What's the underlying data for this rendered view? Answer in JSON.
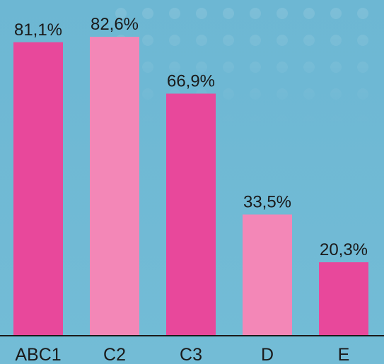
{
  "chart_data": {
    "type": "bar",
    "categories": [
      "ABC1",
      "C2",
      "C3",
      "D",
      "E"
    ],
    "values": [
      81.1,
      82.6,
      66.9,
      33.5,
      20.3
    ],
    "value_labels": [
      "81,1%",
      "82,6%",
      "66,9%",
      "33,5%",
      "20,3%"
    ],
    "colors": [
      "#e8489b",
      "#f387b7",
      "#e8489b",
      "#f387b7",
      "#e8489b"
    ]
  }
}
